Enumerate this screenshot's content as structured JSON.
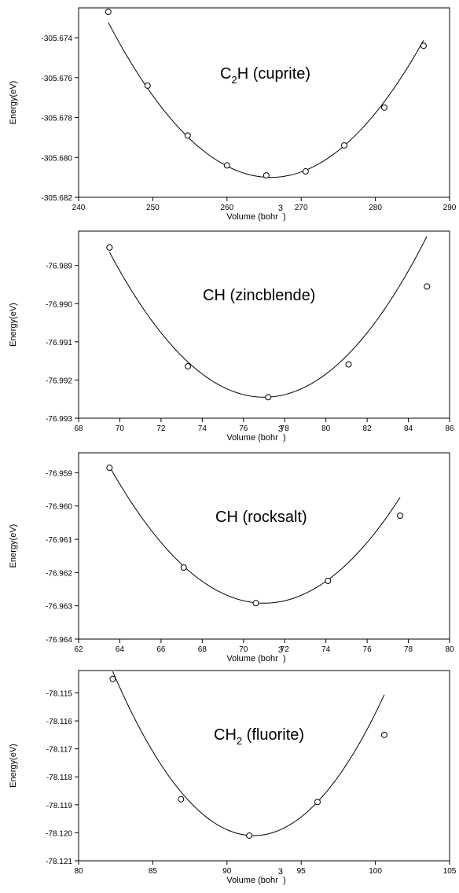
{
  "chart_data": [
    {
      "type": "scatter",
      "label_main": "C",
      "label_sub": "2",
      "label_rest": "H (cuprite)",
      "xlabel": "Volume (bohr",
      "xlabel_exp": "3",
      "xlabel_close": ")",
      "ylabel": "Energy(eV)",
      "xlim": [
        240,
        290
      ],
      "ylim": [
        -305.682,
        -305.6725
      ],
      "xticks": [
        "240",
        "250",
        "260",
        "270",
        "280",
        "290"
      ],
      "xtick_values": [
        240,
        250,
        260,
        270,
        280,
        290
      ],
      "yticks": [
        "-305.674",
        "-305.676",
        "-305.678",
        "-305.680",
        "-305.682"
      ],
      "ytick_values": [
        -305.674,
        -305.676,
        -305.678,
        -305.68,
        -305.682
      ],
      "grid": false,
      "x": [
        244.0,
        249.3,
        254.7,
        260.0,
        265.3,
        270.6,
        275.8,
        281.2,
        286.5
      ],
      "y": [
        -305.6727,
        -305.6764,
        -305.6789,
        -305.6804,
        -305.6809,
        -305.6807,
        -305.6794,
        -305.6775,
        -305.6744
      ],
      "fit": {
        "vmin": 265.9,
        "emin": -305.681,
        "a": 1.62e-05
      }
    },
    {
      "type": "scatter",
      "label_main": "CH (zincblende)",
      "label_sub": "",
      "label_rest": "",
      "xlabel": "Volume (bohr",
      "xlabel_exp": "3",
      "xlabel_close": ")",
      "ylabel": "Energy(eV)",
      "xlim": [
        68,
        86
      ],
      "ylim": [
        -76.993,
        -76.9881
      ],
      "xticks": [
        "68",
        "70",
        "72",
        "74",
        "76",
        "78",
        "80",
        "82",
        "84",
        "86"
      ],
      "xtick_values": [
        68,
        70,
        72,
        74,
        76,
        78,
        80,
        82,
        84,
        86
      ],
      "yticks": [
        "-76.989",
        "-76.990",
        "-76.991",
        "-76.992",
        "-76.993"
      ],
      "ytick_values": [
        -76.989,
        -76.99,
        -76.991,
        -76.992,
        -76.993
      ],
      "grid": false,
      "x": [
        69.5,
        73.3,
        77.2,
        81.1,
        84.9
      ],
      "y": [
        -76.98853,
        -76.99164,
        -76.99245,
        -76.99159,
        -76.98955
      ],
      "fit": {
        "vmin": 77.0,
        "emin": -76.99245,
        "a": 6.75e-05
      }
    },
    {
      "type": "scatter",
      "label_main": "CH (rocksalt)",
      "label_sub": "",
      "label_rest": "",
      "xlabel": "Volume (bohr",
      "xlabel_exp": "3",
      "xlabel_close": ")",
      "ylabel": "Energy(eV)",
      "xlim": [
        62,
        80
      ],
      "ylim": [
        -76.964,
        -76.9584
      ],
      "xticks": [
        "62",
        "64",
        "66",
        "68",
        "70",
        "72",
        "74",
        "76",
        "78",
        "80"
      ],
      "xtick_values": [
        62,
        64,
        66,
        68,
        70,
        72,
        74,
        76,
        78,
        80
      ],
      "yticks": [
        "-76.959",
        "-76.960",
        "-76.961",
        "-76.962",
        "-76.963",
        "-76.964"
      ],
      "ytick_values": [
        -76.959,
        -76.96,
        -76.961,
        -76.962,
        -76.963,
        -76.964
      ],
      "grid": false,
      "x": [
        63.5,
        67.1,
        70.6,
        74.1,
        77.6
      ],
      "y": [
        -76.95885,
        -76.96185,
        -76.96292,
        -76.96225,
        -76.96029
      ],
      "fit": {
        "vmin": 71.0,
        "emin": -76.96292,
        "a": 7.3e-05
      }
    },
    {
      "type": "scatter",
      "label_main": "CH",
      "label_sub": "2",
      "label_rest": " (fluorite)",
      "xlabel": "Volume (bohr",
      "xlabel_exp": "3",
      "xlabel_close": ")",
      "ylabel": "Energy(eV)",
      "xlim": [
        80,
        105
      ],
      "ylim": [
        -78.121,
        -78.1142
      ],
      "xticks": [
        "80",
        "85",
        "90",
        "95",
        "100",
        "105"
      ],
      "xtick_values": [
        80,
        85,
        90,
        95,
        100,
        105
      ],
      "yticks": [
        "-78.115",
        "-78.116",
        "-78.117",
        "-78.118",
        "-78.119",
        "-78.120",
        "-78.121"
      ],
      "ytick_values": [
        -78.115,
        -78.116,
        -78.117,
        -78.118,
        -78.119,
        -78.12,
        -78.121
      ],
      "grid": false,
      "x": [
        82.3,
        86.9,
        91.5,
        96.1,
        100.6
      ],
      "y": [
        -78.1145,
        -78.1188,
        -78.1201,
        -78.1189,
        -78.1165
      ],
      "fit": {
        "vmin": 91.8,
        "emin": -78.1201,
        "a": 6.5e-05
      }
    }
  ]
}
